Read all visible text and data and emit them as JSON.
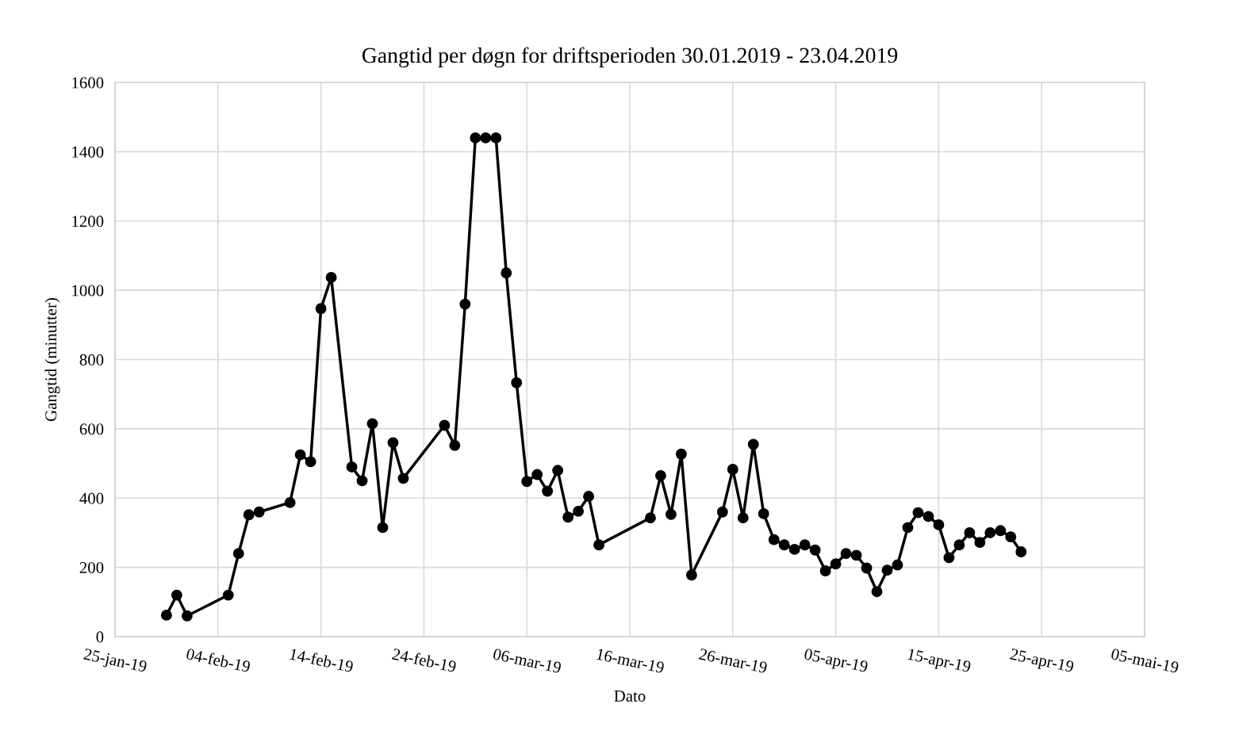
{
  "chart_data": {
    "type": "line",
    "title": "Gangtid per døgn for driftsperioden 30.01.2019 - 23.04.2019",
    "xlabel": "Dato",
    "ylabel": "Gangtid (minutter)",
    "x": [
      "2019-01-30",
      "2019-01-31",
      "2019-02-01",
      "2019-02-05",
      "2019-02-06",
      "2019-02-07",
      "2019-02-08",
      "2019-02-11",
      "2019-02-12",
      "2019-02-13",
      "2019-02-14",
      "2019-02-15",
      "2019-02-17",
      "2019-02-18",
      "2019-02-19",
      "2019-02-20",
      "2019-02-21",
      "2019-02-22",
      "2019-02-26",
      "2019-02-27",
      "2019-02-28",
      "2019-03-01",
      "2019-03-02",
      "2019-03-03",
      "2019-03-04",
      "2019-03-05",
      "2019-03-06",
      "2019-03-07",
      "2019-03-08",
      "2019-03-09",
      "2019-03-10",
      "2019-03-11",
      "2019-03-12",
      "2019-03-13",
      "2019-03-18",
      "2019-03-19",
      "2019-03-20",
      "2019-03-21",
      "2019-03-22",
      "2019-03-25",
      "2019-03-26",
      "2019-03-27",
      "2019-03-28",
      "2019-03-29",
      "2019-03-30",
      "2019-03-31",
      "2019-04-01",
      "2019-04-02",
      "2019-04-03",
      "2019-04-04",
      "2019-04-05",
      "2019-04-06",
      "2019-04-07",
      "2019-04-08",
      "2019-04-09",
      "2019-04-10",
      "2019-04-11",
      "2019-04-12",
      "2019-04-13",
      "2019-04-14",
      "2019-04-15",
      "2019-04-16",
      "2019-04-17",
      "2019-04-18",
      "2019-04-19",
      "2019-04-20",
      "2019-04-21",
      "2019-04-22",
      "2019-04-23"
    ],
    "series": [
      {
        "color": "#000000",
        "values": [
          62,
          120,
          60,
          120,
          240,
          352,
          360,
          387,
          525,
          505,
          947,
          1037,
          490,
          450,
          615,
          315,
          560,
          457,
          610,
          552,
          960,
          1440,
          1440,
          1440,
          1050,
          733,
          448,
          468,
          420,
          480,
          345,
          362,
          405,
          265,
          343,
          465,
          353,
          527,
          178,
          360,
          483,
          343,
          555,
          355,
          280,
          265,
          252,
          265,
          250,
          190,
          210,
          240,
          235,
          198,
          130,
          192,
          207,
          315,
          358,
          347,
          323,
          228,
          265,
          300,
          272,
          300,
          306,
          288,
          245
        ]
      }
    ],
    "xlim": [
      "2019-01-25",
      "2019-05-05"
    ],
    "xticks": [
      {
        "value": "2019-01-25",
        "label": "25-jan-19"
      },
      {
        "value": "2019-02-04",
        "label": "04-feb-19"
      },
      {
        "value": "2019-02-14",
        "label": "14-feb-19"
      },
      {
        "value": "2019-02-24",
        "label": "24-feb-19"
      },
      {
        "value": "2019-03-06",
        "label": "06-mar-19"
      },
      {
        "value": "2019-03-16",
        "label": "16-mar-19"
      },
      {
        "value": "2019-03-26",
        "label": "26-mar-19"
      },
      {
        "value": "2019-04-05",
        "label": "05-apr-19"
      },
      {
        "value": "2019-04-15",
        "label": "15-apr-19"
      },
      {
        "value": "2019-04-25",
        "label": "25-apr-19"
      },
      {
        "value": "2019-05-05",
        "label": "05-mai-19"
      }
    ],
    "ylim": [
      0,
      1600
    ],
    "yticks": [
      0,
      200,
      400,
      600,
      800,
      1000,
      1200,
      1400,
      1600
    ],
    "grid": true,
    "marker": "circle",
    "line_style": "solid"
  }
}
